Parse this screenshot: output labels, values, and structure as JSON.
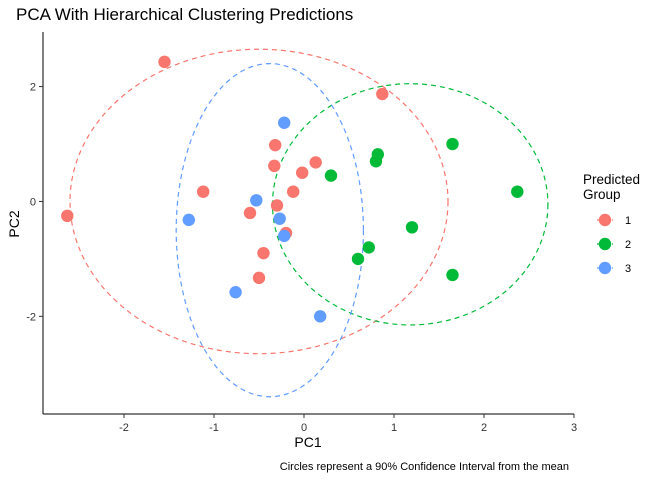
{
  "chart_data": {
    "type": "scatter",
    "title": "PCA With Hierarchical Clustering Predictions",
    "xlabel": "PC1",
    "ylabel": "PC2",
    "caption": "Circles represent a 90% Confidence Interval from the mean",
    "xlim": [
      -2.9,
      3
    ],
    "ylim": [
      -3.7,
      2.95
    ],
    "xticks": [
      -2,
      -1,
      0,
      1,
      2,
      3
    ],
    "yticks": [
      2,
      0,
      -2
    ],
    "grid": false,
    "legend": {
      "title_lines": [
        "Predicted",
        "Group"
      ],
      "placement": "right"
    },
    "series": [
      {
        "name": "1",
        "color": "#F8766D",
        "points": [
          {
            "x": -2.63,
            "y": -0.25
          },
          {
            "x": -1.55,
            "y": 2.43
          },
          {
            "x": -1.12,
            "y": 0.17
          },
          {
            "x": -0.6,
            "y": -0.2
          },
          {
            "x": -0.45,
            "y": -0.9
          },
          {
            "x": -0.5,
            "y": -1.33
          },
          {
            "x": -0.32,
            "y": 0.98
          },
          {
            "x": -0.33,
            "y": 0.62
          },
          {
            "x": -0.3,
            "y": -0.07
          },
          {
            "x": -0.2,
            "y": -0.55
          },
          {
            "x": -0.12,
            "y": 0.17
          },
          {
            "x": -0.02,
            "y": 0.5
          },
          {
            "x": 0.13,
            "y": 0.68
          },
          {
            "x": 0.87,
            "y": 1.87
          }
        ],
        "ellipse": {
          "cx": -0.5,
          "cy": 0.0,
          "rx": 2.1,
          "ry": 2.65
        }
      },
      {
        "name": "2",
        "color": "#00BA38",
        "points": [
          {
            "x": 0.3,
            "y": 0.45
          },
          {
            "x": 0.6,
            "y": -1.0
          },
          {
            "x": 0.72,
            "y": -0.8
          },
          {
            "x": 0.8,
            "y": 0.7
          },
          {
            "x": 0.82,
            "y": 0.82
          },
          {
            "x": 1.2,
            "y": -0.45
          },
          {
            "x": 1.65,
            "y": 1.0
          },
          {
            "x": 1.65,
            "y": -1.28
          },
          {
            "x": 2.37,
            "y": 0.17
          }
        ],
        "ellipse": {
          "cx": 1.18,
          "cy": -0.05,
          "rx": 1.53,
          "ry": 2.1
        }
      },
      {
        "name": "3",
        "color": "#619CFF",
        "points": [
          {
            "x": -1.28,
            "y": -0.32
          },
          {
            "x": -0.76,
            "y": -1.58
          },
          {
            "x": -0.53,
            "y": 0.02
          },
          {
            "x": -0.27,
            "y": -0.3
          },
          {
            "x": -0.22,
            "y": 1.37
          },
          {
            "x": -0.22,
            "y": -0.6
          },
          {
            "x": 0.18,
            "y": -2.0
          }
        ],
        "ellipse": {
          "cx": -0.38,
          "cy": -0.5,
          "rx": 1.04,
          "ry": 2.9
        }
      }
    ]
  }
}
